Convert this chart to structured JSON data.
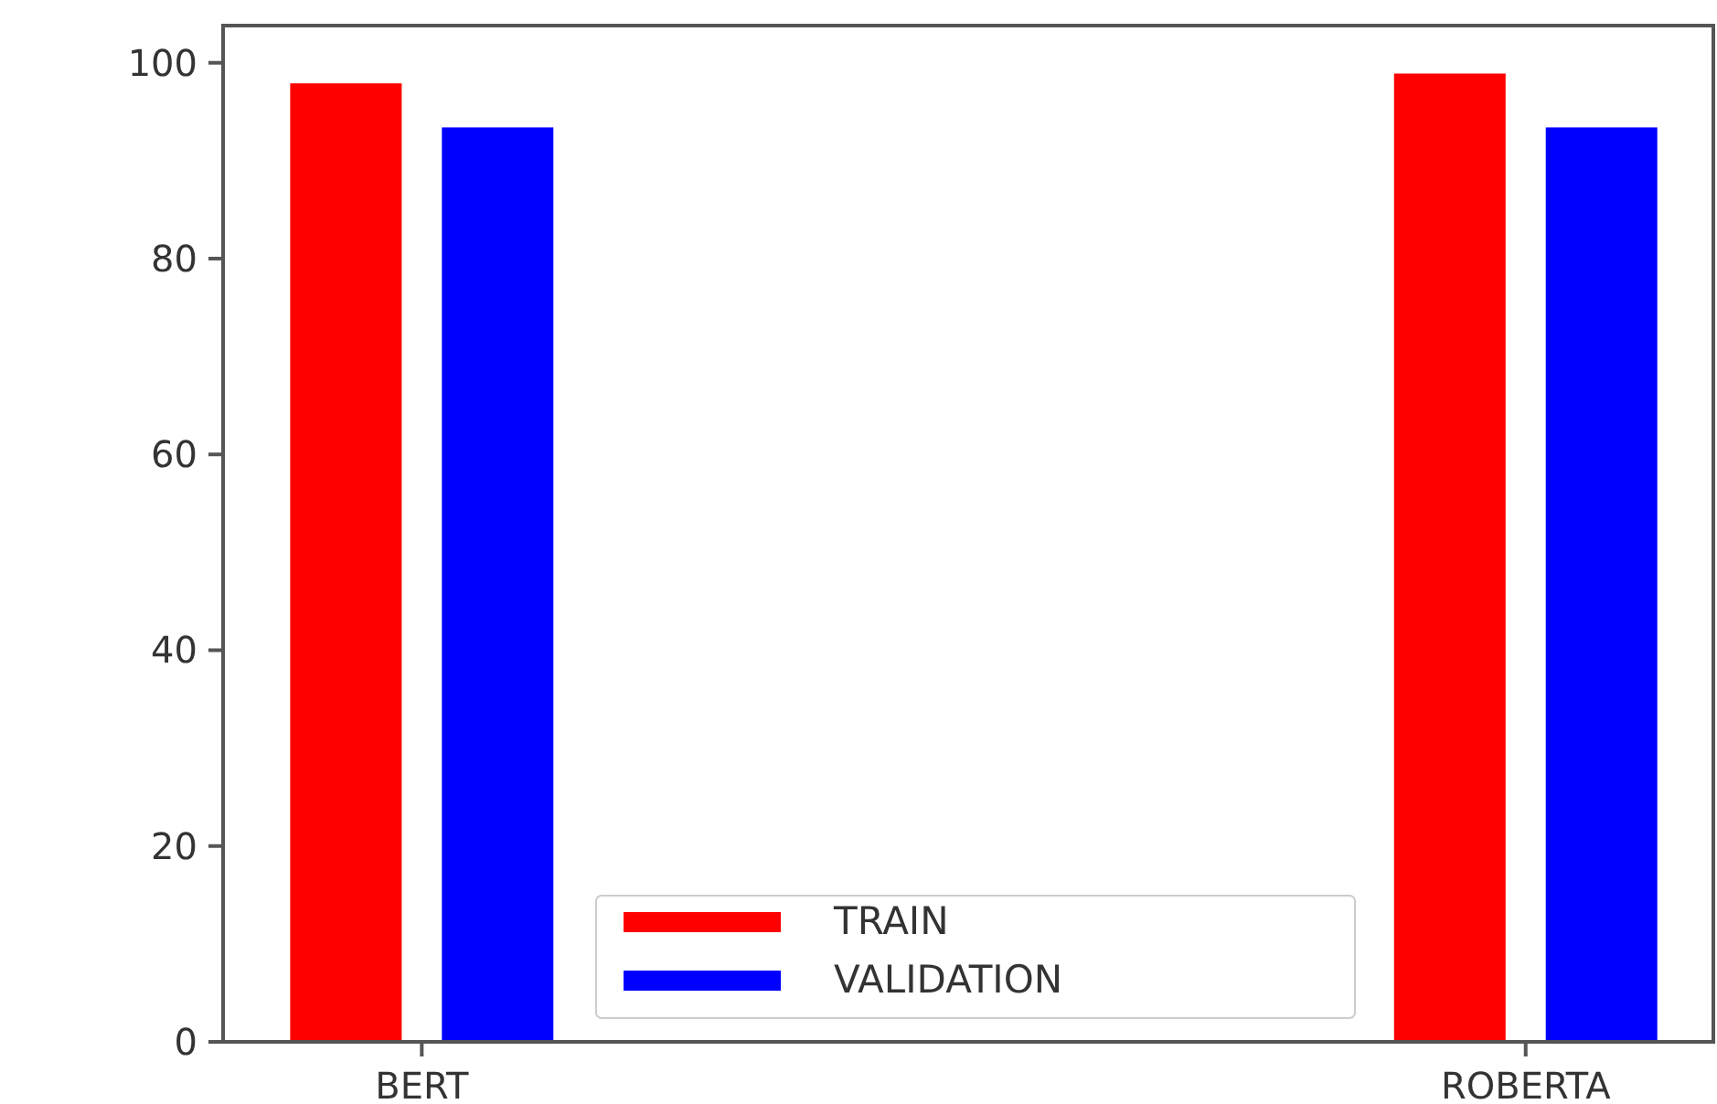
{
  "chart_data": {
    "type": "bar",
    "categories": [
      "BERT",
      "ROBERTA"
    ],
    "series": [
      {
        "name": "TRAIN",
        "color": "#ff0000",
        "values": [
          97.9,
          98.9
        ]
      },
      {
        "name": "VALIDATION",
        "color": "#0000ff",
        "values": [
          93.4,
          93.4
        ]
      }
    ],
    "ylim": [
      0,
      103.8
    ],
    "yticks": [
      0,
      20,
      40,
      60,
      80,
      100
    ],
    "grid": false,
    "legend": "bottom"
  }
}
